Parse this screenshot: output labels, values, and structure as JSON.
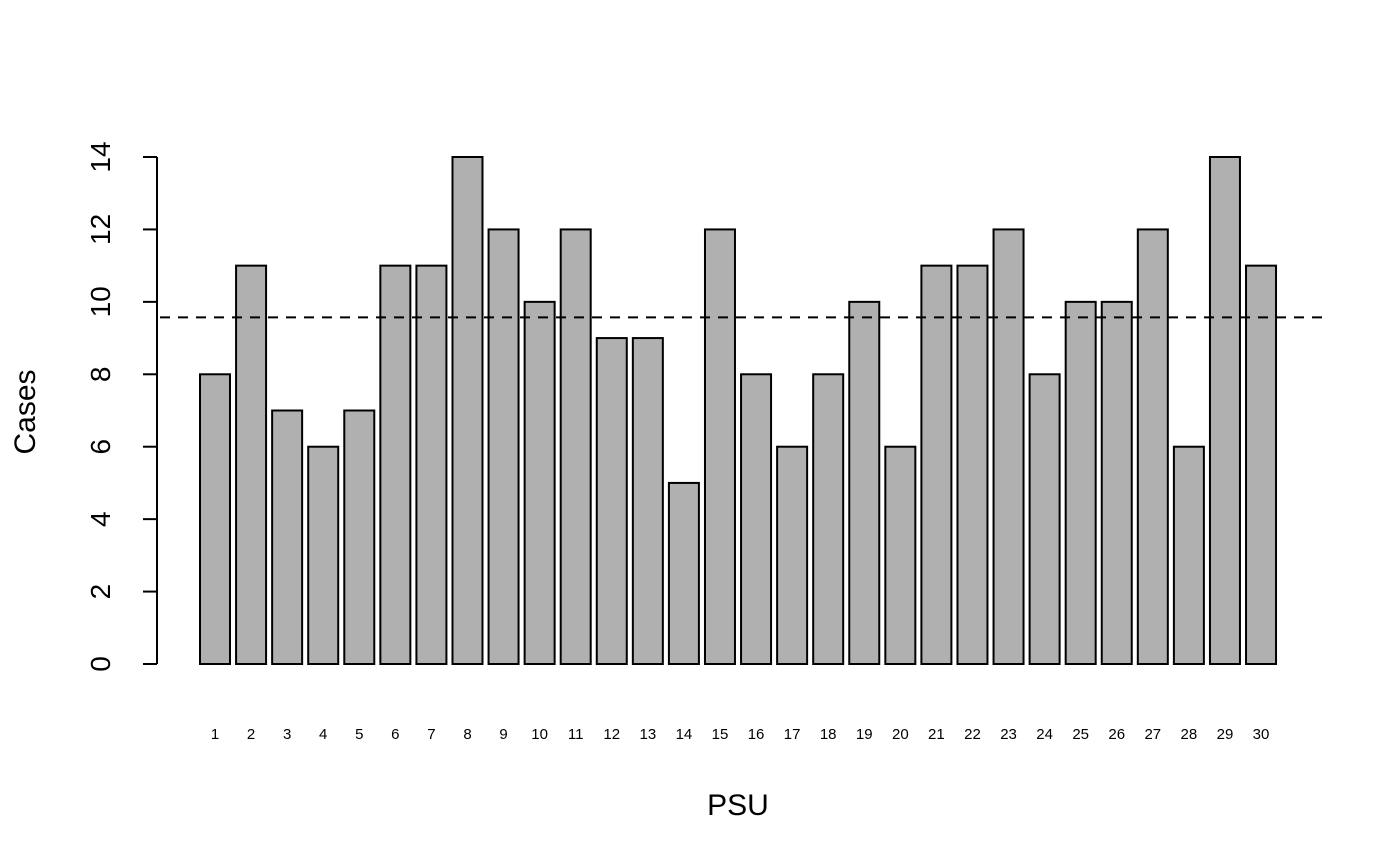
{
  "chart_data": {
    "type": "bar",
    "categories": [
      "1",
      "2",
      "3",
      "4",
      "5",
      "6",
      "7",
      "8",
      "9",
      "10",
      "11",
      "12",
      "13",
      "14",
      "15",
      "16",
      "17",
      "18",
      "19",
      "20",
      "21",
      "22",
      "23",
      "24",
      "25",
      "26",
      "27",
      "28",
      "29",
      "30"
    ],
    "values": [
      8,
      11,
      7,
      6,
      7,
      11,
      11,
      14,
      12,
      10,
      12,
      9,
      9,
      5,
      12,
      8,
      6,
      8,
      10,
      6,
      11,
      11,
      12,
      8,
      10,
      10,
      12,
      6,
      14,
      11
    ],
    "mean_line": 9.57,
    "xlabel": "PSU",
    "ylabel": "Cases",
    "yticks": [
      0,
      2,
      4,
      6,
      8,
      10,
      12,
      14
    ],
    "ylim": [
      0,
      14
    ],
    "bar_color": "#b0b0b0",
    "grid": false
  }
}
